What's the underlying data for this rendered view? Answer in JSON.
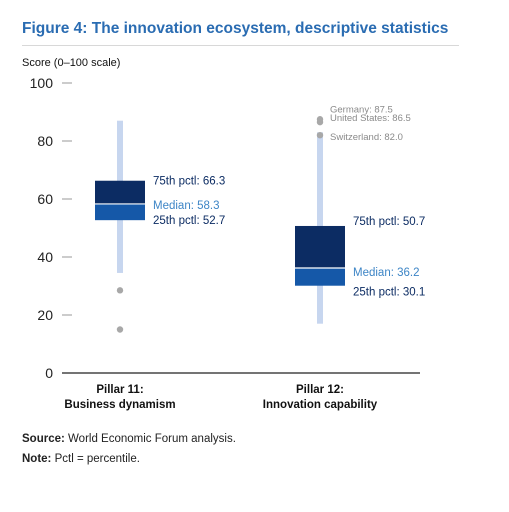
{
  "figure": {
    "title": "Figure 4: The innovation ecosystem, descriptive statistics",
    "source_label": "Source:",
    "source_text": "World Economic Forum analysis.",
    "note_label": "Note:",
    "note_text": "Pctl = percentile."
  },
  "colors": {
    "title": "#2a6cb2",
    "whisker": "#c7d6ef",
    "upper_box": "#0c2c63",
    "lower_box": "#1558a8",
    "median_text": "#3d85c6",
    "label_text": "#0c2c63",
    "outlier": "#a8a8a8",
    "outlier_text": "#8a8a8a"
  },
  "chart_data": {
    "type": "box",
    "ylabel": "Score (0–100 scale)",
    "ylim": [
      0,
      100
    ],
    "yticks": [
      0,
      20,
      40,
      60,
      80,
      100
    ],
    "grid": false,
    "boxes": [
      {
        "category_line1": "Pillar 11:",
        "category_line2": "Business dynamism",
        "whisker_low": 34.5,
        "whisker_high": 87,
        "q1": 52.7,
        "median": 58.3,
        "q3": 66.3,
        "q3_label": "75th pctl: 66.3",
        "median_label": "Median: 58.3",
        "q1_label": "25th pctl: 52.7",
        "outliers": [
          {
            "value": 28.5,
            "label": ""
          },
          {
            "value": 15,
            "label": ""
          }
        ]
      },
      {
        "category_line1": "Pillar 12:",
        "category_line2": "Innovation capability",
        "whisker_low": 17,
        "whisker_high": 83,
        "q1": 30.1,
        "median": 36.2,
        "q3": 50.7,
        "q3_label": "75th pctl: 50.7",
        "median_label": "Median: 36.2",
        "q1_label": "25th pctl: 30.1",
        "outliers": [
          {
            "value": 87.5,
            "label": "Germany: 87.5"
          },
          {
            "value": 86.5,
            "label": "United States: 86.5"
          },
          {
            "value": 82.0,
            "label": "Switzerland: 82.0"
          }
        ]
      }
    ]
  }
}
